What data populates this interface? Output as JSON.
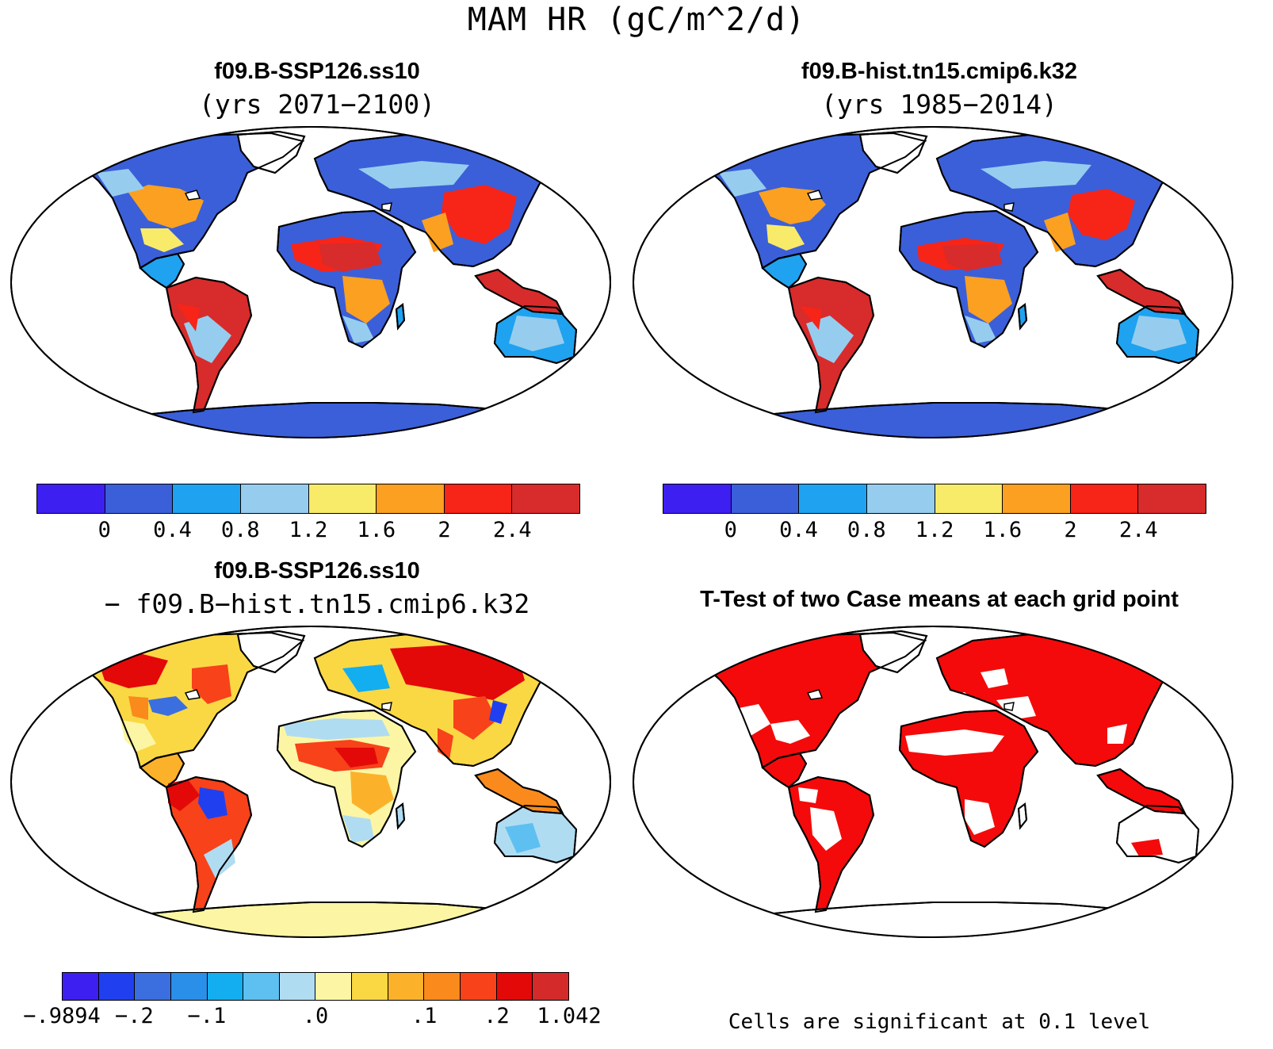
{
  "figure_title": "MAM HR (gC/m^2/d)",
  "panels": [
    {
      "title": "f09.B-SSP126.ss10",
      "subtitle": "(yrs 2071−2100)",
      "palette": [
        "#3d1ff2",
        "#3b5fd9",
        "#1fa2f0",
        "#96cdef",
        "#f9eb6a",
        "#fba020",
        "#f72418",
        "#d82b2b"
      ],
      "tick_labels": [
        "0",
        "0.4",
        "0.8",
        "1.2",
        "1.6",
        "2",
        "2.4"
      ]
    },
    {
      "title": "f09.B-hist.tn15.cmip6.k32",
      "subtitle": "(yrs 1985−2014)",
      "palette": [
        "#3d1ff2",
        "#3b5fd9",
        "#1fa2f0",
        "#96cdef",
        "#f9eb6a",
        "#fba020",
        "#f72418",
        "#d82b2b"
      ],
      "tick_labels": [
        "0",
        "0.4",
        "0.8",
        "1.2",
        "1.6",
        "2",
        "2.4"
      ]
    },
    {
      "title": "f09.B-SSP126.ss10",
      "subtitle": "− f09.B−hist.tn15.cmip6.k32",
      "palette": [
        "#3d1ff2",
        "#2040ef",
        "#3b6fe0",
        "#2a8fe8",
        "#12aef0",
        "#5ec0f0",
        "#b0dcf2",
        "#fcf6a4",
        "#fad844",
        "#fbb22a",
        "#fa8a1c",
        "#f7421a",
        "#e30909",
        "#d42a2a"
      ],
      "tick_labels": [
        "−.9894",
        "−.2",
        "−.1",
        ".0",
        ".1",
        ".2",
        "1.042"
      ]
    },
    {
      "title": "T-Test of two Case means at each grid point",
      "footnote": "Cells are significant at 0.1 level"
    }
  ],
  "colors": {
    "significant": "#f40a0a",
    "coastline": "#000000",
    "ocean": "#ffffff"
  }
}
